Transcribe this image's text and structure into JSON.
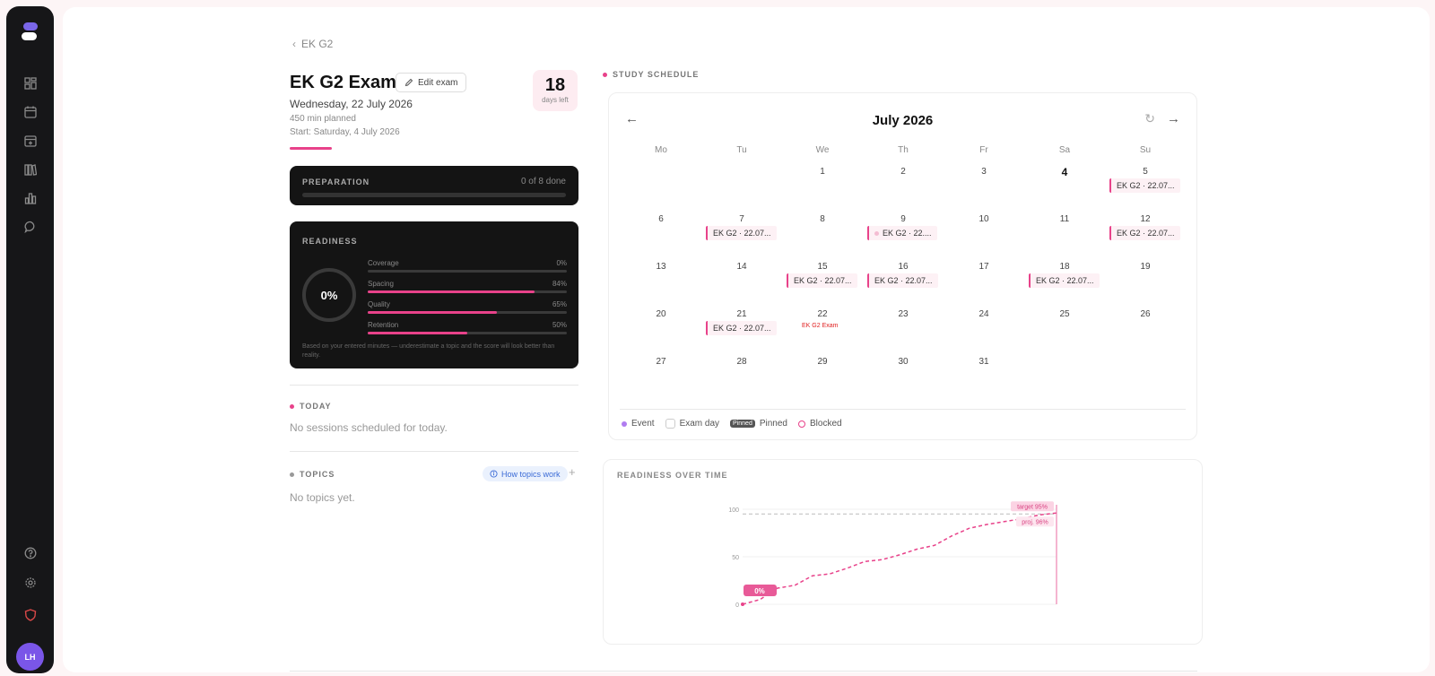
{
  "breadcrumb": {
    "label": "EK G2"
  },
  "exam": {
    "title": "EK G2 Exam",
    "edit_label": "Edit exam",
    "date": "Wednesday, 22 July 2026",
    "planned": "450 min planned",
    "start": "Start: Saturday, 4 July 2026",
    "days_left_value": "18",
    "days_left_label": "days left"
  },
  "preparation": {
    "label": "PREPARATION",
    "count": "0 of 8 done",
    "progress": 0
  },
  "readiness": {
    "label": "READINESS",
    "score": "0%",
    "metrics": [
      {
        "name": "Coverage",
        "value": "0%",
        "fraction": 0
      },
      {
        "name": "Spacing",
        "value": "84%",
        "fraction": 0.84
      },
      {
        "name": "Quality",
        "value": "65%",
        "fraction": 0.65
      },
      {
        "name": "Retention",
        "value": "50%",
        "fraction": 0.5
      }
    ],
    "note": "Based on your entered minutes — underestimate a topic and the score will look better than reality."
  },
  "today": {
    "label": "TODAY",
    "empty": "No sessions scheduled for today."
  },
  "topics": {
    "label": "TOPICS",
    "help_label": "How topics work",
    "add_label": "+",
    "empty": "No topics yet."
  },
  "schedule": {
    "label": "STUDY SCHEDULE",
    "month": "July 2026",
    "prev": "←",
    "next": "→",
    "refresh": "↻",
    "weekdays": [
      "Mo",
      "Tu",
      "We",
      "Th",
      "Fr",
      "Sa",
      "Su"
    ],
    "event_label": "EK G2 · 22.07...",
    "event_label_short": "EK G2 · 22....",
    "exam_label": "EK G2 Exam",
    "legend": {
      "event": "Event",
      "exam_day": "Exam day",
      "pinned_badge": "Pinned",
      "pinned": "Pinned",
      "blocked": "Blocked"
    }
  },
  "readiness_chart": {
    "label": "READINESS OVER TIME",
    "current_label": "0%",
    "target_label": "target 95%",
    "projected_label": "proj. 96%",
    "y_ticks": [
      "0",
      "50",
      "100"
    ]
  },
  "chart_data": {
    "type": "line",
    "title": "READINESS OVER TIME",
    "ylim": [
      0,
      100
    ],
    "y_ticks": [
      0,
      50,
      100
    ],
    "target": 95,
    "series": [
      {
        "name": "proj. 96%",
        "values": [
          0,
          5,
          17,
          20,
          30,
          32,
          38,
          45,
          47,
          52,
          58,
          62,
          72,
          80,
          84,
          87,
          90,
          94,
          96
        ]
      }
    ],
    "colors": {
      "accent": "#e8428a"
    }
  },
  "sidebar": {
    "icons": [
      "dashboard-icon",
      "calendar-icon",
      "calendar-add-icon",
      "library-icon",
      "stats-icon",
      "chat-icon"
    ],
    "bottom_icons": [
      "help-icon",
      "settings-icon",
      "shield-icon"
    ],
    "avatar": "LH"
  }
}
